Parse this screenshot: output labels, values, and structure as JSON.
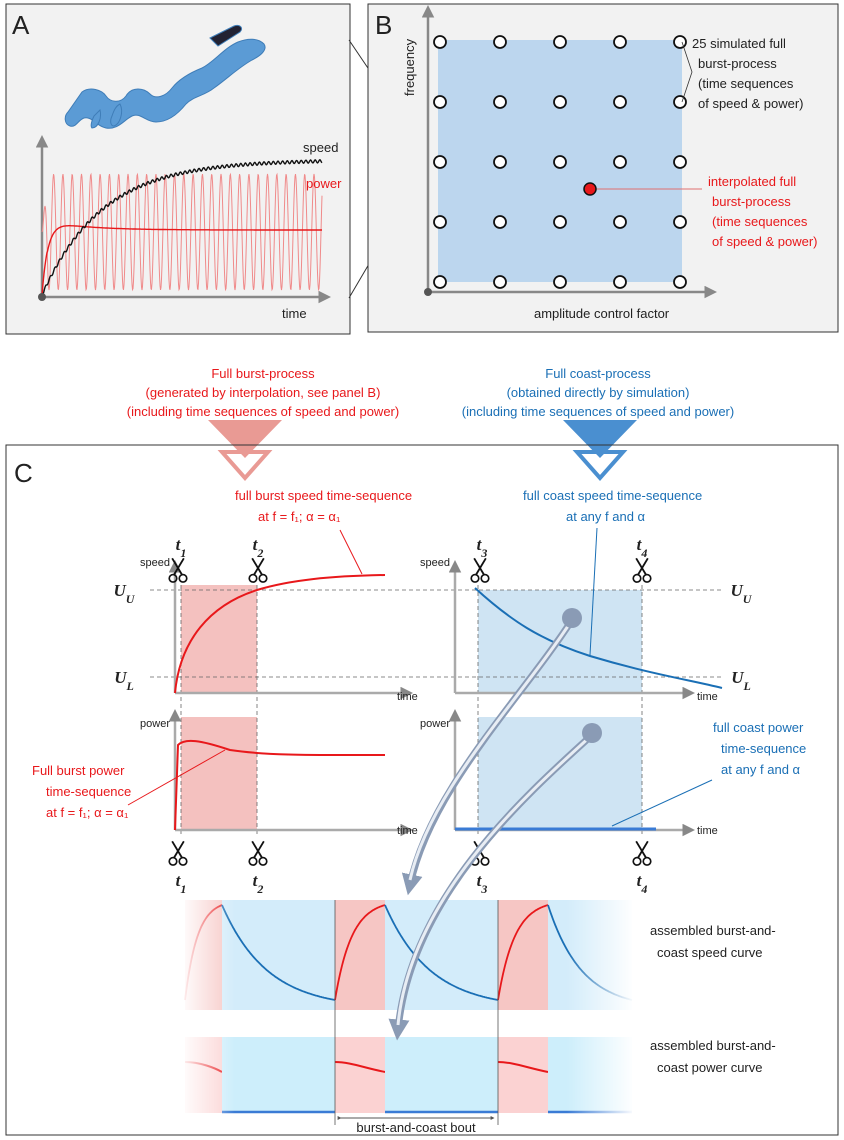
{
  "panel_a": {
    "label": "A",
    "speed": "speed",
    "power": "power",
    "x_axis": "time"
  },
  "panel_b": {
    "label": "B",
    "y_axis": "frequency",
    "x_axis": "amplitude control factor",
    "simulated_note": [
      "25 simulated full",
      "burst-process",
      "(time sequences",
      "of speed & power)"
    ],
    "interpolated_note": [
      "interpolated full",
      "burst-process",
      "(time sequences",
      "of speed & power)"
    ]
  },
  "burst_process": [
    "Full burst-process",
    "(generated by interpolation, see panel B)",
    "(including time sequences of speed and power)"
  ],
  "coast_process": [
    "Full coast-process",
    "(obtained directly by simulation)",
    "(including time sequences of speed and power)"
  ],
  "panel_c": {
    "label": "C",
    "burst": {
      "speed_note": [
        "full burst speed time-sequence",
        "at f = f₁; α = α₁"
      ],
      "speed_axis": "speed",
      "speed_time": "time",
      "power_axis": "power",
      "power_time": "time",
      "power_note": [
        "Full burst power",
        "time-sequence",
        "at f = f₁; α = α₁"
      ],
      "upper": {
        "main": "U",
        "sub": "U"
      },
      "lower": {
        "main": "U",
        "sub": "L"
      },
      "cuts_top": [
        {
          "main": "t",
          "sub": "1"
        },
        {
          "main": "t",
          "sub": "2"
        }
      ],
      "cuts_bottom": [
        {
          "main": "t",
          "sub": "1"
        },
        {
          "main": "t",
          "sub": "2"
        }
      ]
    },
    "coast": {
      "speed_note": [
        "full coast speed time-sequence",
        "at any f and α"
      ],
      "speed_axis": "speed",
      "speed_time": "time",
      "power_axis": "power",
      "power_time": "time",
      "power_note": [
        "full coast power",
        "time-sequence",
        "at any f and α"
      ],
      "upper": {
        "main": "U",
        "sub": "U"
      },
      "lower": {
        "main": "U",
        "sub": "L"
      },
      "cuts_top": [
        {
          "main": "t",
          "sub": "3"
        },
        {
          "main": "t",
          "sub": "4"
        }
      ],
      "cuts_bottom": [
        {
          "main": "t",
          "sub": "3"
        },
        {
          "main": "t",
          "sub": "4"
        }
      ]
    },
    "assembled_speed": [
      "assembled burst-and-",
      "coast speed curve"
    ],
    "assembled_power": [
      "assembled burst-and-",
      "coast power curve"
    ],
    "bout": "burst-and-coast bout"
  }
}
